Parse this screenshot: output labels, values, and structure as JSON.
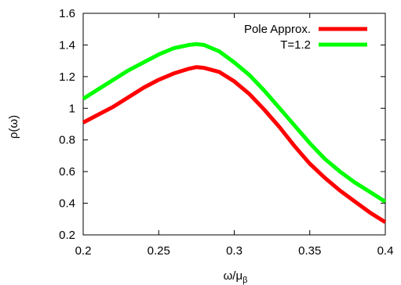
{
  "chart_data": {
    "type": "line",
    "title": "",
    "xlabel": "ω/μ",
    "xlabel_sub": "β",
    "ylabel": "ρ(ω)",
    "xlim": [
      0.2,
      0.4
    ],
    "ylim": [
      0.2,
      1.6
    ],
    "xticks": [
      "0.2",
      "0.25",
      "0.3",
      "0.35",
      "0.4"
    ],
    "yticks": [
      "0.2",
      "0.4",
      "0.6",
      "0.8",
      "1",
      "1.2",
      "1.4",
      "1.6"
    ],
    "grid": false,
    "legend_position": "top-right",
    "series": [
      {
        "name": "Pole Approx.",
        "color": "#ff0000",
        "x": [
          0.2,
          0.21,
          0.22,
          0.23,
          0.24,
          0.25,
          0.26,
          0.27,
          0.275,
          0.28,
          0.29,
          0.3,
          0.31,
          0.32,
          0.33,
          0.34,
          0.35,
          0.36,
          0.37,
          0.38,
          0.39,
          0.4
        ],
        "y": [
          0.91,
          0.96,
          1.01,
          1.07,
          1.13,
          1.18,
          1.22,
          1.25,
          1.26,
          1.255,
          1.23,
          1.17,
          1.09,
          0.99,
          0.88,
          0.76,
          0.65,
          0.56,
          0.48,
          0.41,
          0.34,
          0.28
        ]
      },
      {
        "name": "T=1.2",
        "color": "#00ff00",
        "x": [
          0.2,
          0.21,
          0.22,
          0.23,
          0.24,
          0.25,
          0.26,
          0.27,
          0.275,
          0.28,
          0.29,
          0.3,
          0.31,
          0.32,
          0.33,
          0.34,
          0.35,
          0.36,
          0.37,
          0.38,
          0.39,
          0.4
        ],
        "y": [
          1.06,
          1.12,
          1.18,
          1.24,
          1.29,
          1.34,
          1.38,
          1.4,
          1.405,
          1.4,
          1.36,
          1.29,
          1.21,
          1.11,
          1.0,
          0.89,
          0.78,
          0.68,
          0.6,
          0.53,
          0.47,
          0.41
        ]
      }
    ]
  }
}
